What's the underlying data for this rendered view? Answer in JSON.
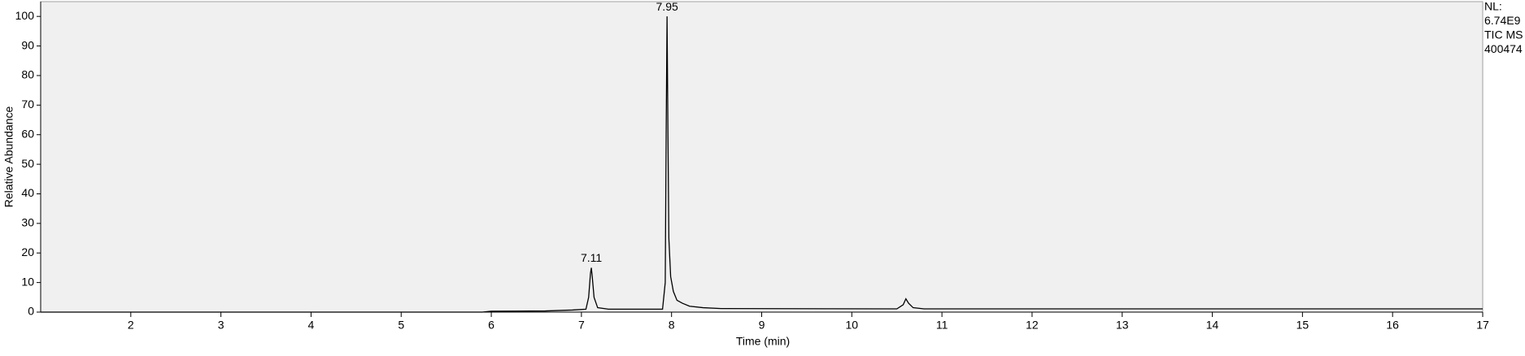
{
  "chart_data": {
    "type": "line",
    "x_label": "Time (min)",
    "y_label": "Relative Abundance",
    "xlim": [
      1.0,
      17.0
    ],
    "ylim": [
      0,
      105
    ],
    "xticks": [
      2,
      3,
      4,
      5,
      6,
      7,
      8,
      9,
      10,
      11,
      12,
      13,
      14,
      15,
      16,
      17
    ],
    "yticks": [
      0,
      10,
      20,
      30,
      40,
      50,
      60,
      70,
      80,
      90,
      100
    ],
    "series": [
      {
        "color": "#000000",
        "x": [
          1.0,
          5.9,
          6.0,
          6.6,
          6.9,
          7.05,
          7.08,
          7.1,
          7.11,
          7.12,
          7.14,
          7.18,
          7.3,
          7.9,
          7.93,
          7.94,
          7.95,
          7.96,
          7.97,
          7.99,
          8.02,
          8.06,
          8.12,
          8.2,
          8.35,
          8.55,
          10.5,
          10.57,
          10.6,
          10.63,
          10.68,
          10.8,
          17.0
        ],
        "values": [
          0,
          0,
          0.3,
          0.4,
          0.7,
          1,
          5,
          13,
          15,
          12,
          5,
          1.5,
          1,
          1,
          10,
          60,
          100,
          60,
          25,
          12,
          7,
          4,
          3,
          2,
          1.5,
          1.2,
          1.1,
          2.5,
          4.5,
          3,
          1.5,
          1.1,
          1.1
        ]
      }
    ],
    "annotations": [
      {
        "text": "7.95",
        "x": 7.95,
        "y": 100
      },
      {
        "text": "7.11",
        "x": 7.11,
        "y": 15
      }
    ],
    "info": [
      "NL:",
      "6.74E9",
      "TIC  MS",
      "400474"
    ]
  }
}
